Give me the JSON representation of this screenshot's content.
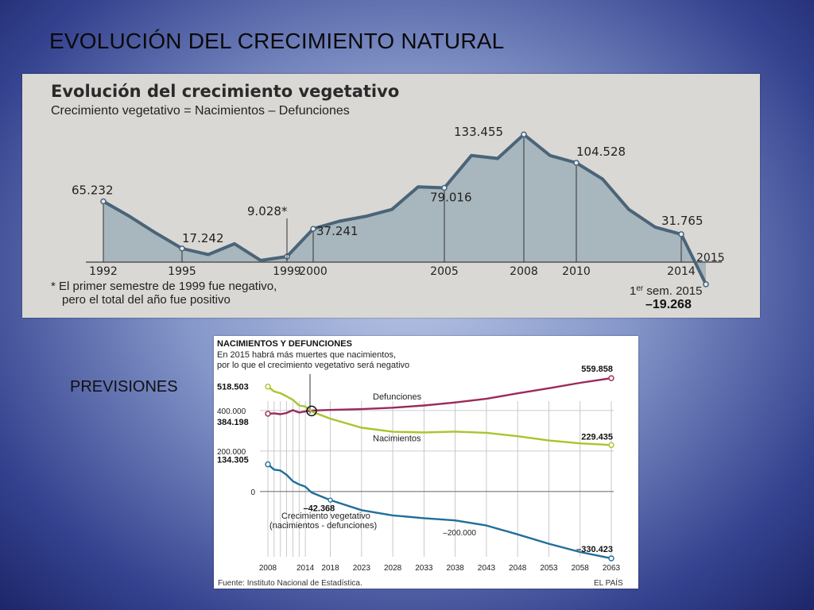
{
  "slide": {
    "title": "EVOLUCIÓN DEL CRECIMIENTO NATURAL",
    "side_label": "PREVISIONES"
  },
  "colors": {
    "area_fill": "#9fb0b8",
    "area_stroke": "#4a6478",
    "defunciones": "#9b2a5a",
    "nacimientos": "#a6c62b",
    "crecimiento": "#1f6e9a"
  },
  "chart_data": [
    {
      "type": "area",
      "title": "Evolución del crecimiento vegetativo",
      "subtitle": "Crecimiento vegetativo = Nacimientos – Defunciones",
      "x": [
        1992,
        1993,
        1994,
        1995,
        1996,
        1997,
        1998,
        1999,
        2000,
        2001,
        2002,
        2003,
        2004,
        2005,
        2006,
        2007,
        2008,
        2009,
        2010,
        2011,
        2012,
        2013,
        2014,
        2015
      ],
      "values": [
        65232,
        50000,
        33000,
        17242,
        11000,
        22000,
        5000,
        9028,
        37241,
        45000,
        50000,
        57000,
        80000,
        79016,
        112000,
        109000,
        133455,
        112000,
        104528,
        88000,
        57000,
        39000,
        31765,
        -19268
      ],
      "tick_labels": [
        "1992",
        "1995",
        "1999",
        "2000",
        "2005",
        "2008",
        "2010",
        "2014",
        "2015"
      ],
      "tick_years": [
        1992,
        1995,
        1999,
        2000,
        2005,
        2008,
        2010,
        2014,
        2015
      ],
      "annotations": [
        {
          "year": 1992,
          "label": "65.232"
        },
        {
          "year": 1995,
          "label": "17.242"
        },
        {
          "year": 1999,
          "label": "9.028*"
        },
        {
          "year": 2000,
          "label": "37.241"
        },
        {
          "year": 2005,
          "label": "79.016"
        },
        {
          "year": 2008,
          "label": "133.455"
        },
        {
          "year": 2010,
          "label": "104.528"
        },
        {
          "year": 2014,
          "label": "31.765"
        }
      ],
      "footnote_1": "* El primer semestre de 1999 fue negativo,",
      "footnote_2": "pero el total del año fue positivo",
      "last_label_prefix": "1",
      "last_label_sup": "er",
      "last_label_rest": " sem. 2015",
      "last_value": "–19.268",
      "ylim": [
        -25000,
        145000
      ]
    },
    {
      "type": "line",
      "title": "NACIMIENTOS Y DEFUNCIONES",
      "subtitle_1": "En 2015 habrá más muertes que nacimientos,",
      "subtitle_2": "por lo que el crecimiento vegetativo será negativo",
      "x": [
        2008,
        2009,
        2010,
        2011,
        2012,
        2013,
        2014,
        2015,
        2018,
        2023,
        2028,
        2033,
        2038,
        2043,
        2048,
        2053,
        2058,
        2063
      ],
      "x_tick_labels": [
        "2008",
        "2014",
        "2018",
        "2023",
        "2028",
        "2033",
        "2038",
        "2043",
        "2048",
        "2053",
        "2058",
        "2063"
      ],
      "x_tick_years": [
        2008,
        2014,
        2018,
        2023,
        2028,
        2033,
        2038,
        2043,
        2048,
        2053,
        2058,
        2063
      ],
      "y_ticks": [
        {
          "value": 400000,
          "label": "400.000"
        },
        {
          "value": 200000,
          "label": "200.000"
        },
        {
          "value": 0,
          "label": "0"
        },
        {
          "value": -200000,
          "label": "–200.000"
        }
      ],
      "series": [
        {
          "name": "Defunciones",
          "values": [
            384198,
            386000,
            382000,
            388000,
            402000,
            390000,
            396000,
            400000,
            403000,
            407000,
            414000,
            425000,
            440000,
            458000,
            485000,
            510000,
            537000,
            559858
          ]
        },
        {
          "name": "Nacimientos",
          "values": [
            518503,
            494000,
            486000,
            470000,
            453000,
            425000,
            420000,
            395000,
            360000,
            315000,
            295000,
            292000,
            296000,
            290000,
            273000,
            252000,
            238000,
            229435
          ]
        },
        {
          "name": "Crecimiento vegetativo (nacimientos - defunciones)",
          "values": [
            134305,
            108000,
            104000,
            82000,
            51000,
            35000,
            24000,
            -5000,
            -42368,
            -92000,
            -118000,
            -132000,
            -143000,
            -168000,
            -212000,
            -258000,
            -299000,
            -330423
          ]
        }
      ],
      "value_labels": [
        {
          "label": "518.503"
        },
        {
          "label": "384.198"
        },
        {
          "label": "134.305"
        },
        {
          "label": "559.858"
        },
        {
          "label": "229.435"
        },
        {
          "label": "–42.368"
        },
        {
          "label": "–330.423"
        }
      ],
      "series_label_crec_1": "Crecimiento vegetativo",
      "series_label_crec_2": "(nacimientos - defunciones)",
      "source": "Fuente: Instituto Nacional de Estadística.",
      "brand": "EL PAÍS",
      "ylim": [
        -350000,
        580000
      ]
    }
  ]
}
